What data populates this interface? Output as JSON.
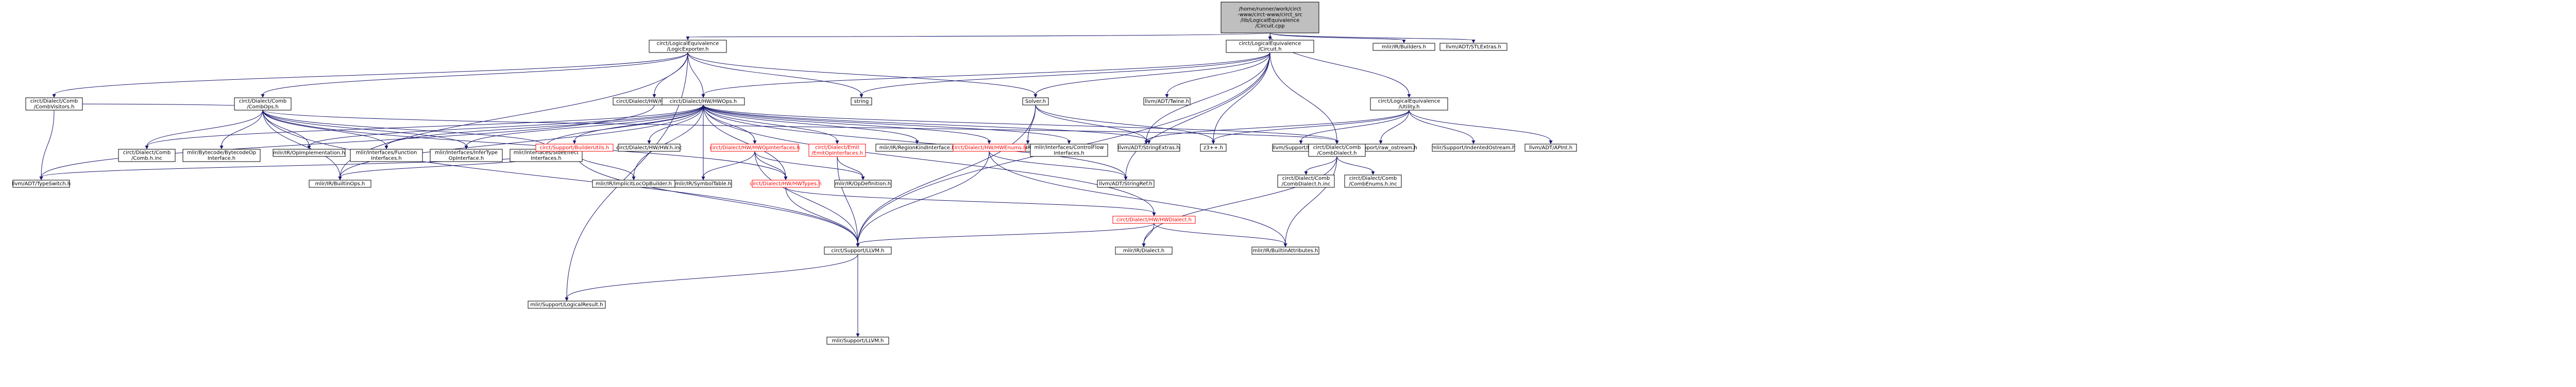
{
  "graph": {
    "colors": {
      "node_fill": "#ffffff",
      "node_border": "#000000",
      "root_fill": "#bfbfbf",
      "red_border": "#ff0000",
      "red_text": "#ff0000",
      "edge": "#191970"
    },
    "nodes": [
      {
        "id": "root",
        "lines": [
          "/home/runner/work/circt",
          "-www/circt-www/circt_src",
          "/lib/LogicalEquivalence",
          "/Circuit.cpp"
        ],
        "style": "root"
      },
      {
        "id": "logicexp",
        "lines": [
          "circt/LogicalEquivalence",
          "/LogicExporter.h"
        ]
      },
      {
        "id": "circuit",
        "lines": [
          "circt/LogicalEquivalence",
          "/Circuit.h"
        ]
      },
      {
        "id": "utility",
        "lines": [
          "circt/LogicalEquivalence",
          "/Utility.h"
        ]
      },
      {
        "id": "irbuilders",
        "lines": [
          "mlir/IR/Builders.h"
        ]
      },
      {
        "id": "stlextras",
        "lines": [
          "llvm/ADT/STLExtras.h"
        ]
      },
      {
        "id": "combvisitors",
        "lines": [
          "circt/Dialect/Comb",
          "/CombVisitors.h"
        ]
      },
      {
        "id": "hwvisitors",
        "lines": [
          "circt/Dialect/HW/HWVisitors.h"
        ]
      },
      {
        "id": "string",
        "lines": [
          "string"
        ]
      },
      {
        "id": "solver",
        "lines": [
          "Solver.h"
        ]
      },
      {
        "id": "twine",
        "lines": [
          "llvm/ADT/Twine.h"
        ]
      },
      {
        "id": "combops",
        "lines": [
          "circt/Dialect/Comb",
          "/CombOps.h"
        ]
      },
      {
        "id": "hwops",
        "lines": [
          "circt/Dialect/HW/HWOps.h"
        ]
      },
      {
        "id": "mlircontext",
        "lines": [
          "mlir/IR/MLIRContext.h"
        ]
      },
      {
        "id": "irvalue",
        "lines": [
          "mlir/IR/Value.h"
        ]
      },
      {
        "id": "z3",
        "lines": [
          "z3++.h"
        ]
      },
      {
        "id": "debug",
        "lines": [
          "llvm/Support/Debug.h"
        ]
      },
      {
        "id": "rawostream",
        "lines": [
          "llvm/Support/raw_ostream.h"
        ]
      },
      {
        "id": "indented",
        "lines": [
          "mlir/Support/IndentedOstream.h"
        ]
      },
      {
        "id": "apint",
        "lines": [
          "llvm/ADT/APInt.h"
        ]
      },
      {
        "id": "combinc",
        "lines": [
          "circt/Dialect/Comb",
          "/Comb.h.inc"
        ]
      },
      {
        "id": "bytecode",
        "lines": [
          "mlir/Bytecode/BytecodeOp",
          "Interface.h"
        ]
      },
      {
        "id": "opimpl",
        "lines": [
          "mlir/IR/OpImplementation.h"
        ]
      },
      {
        "id": "funcif",
        "lines": [
          "mlir/Interfaces/Function",
          "Interfaces.h"
        ]
      },
      {
        "id": "infertype",
        "lines": [
          "mlir/Interfaces/InferType",
          "OpInterface.h"
        ]
      },
      {
        "id": "sideeffect",
        "lines": [
          "mlir/Interfaces/SideEffect",
          "Interfaces.h"
        ]
      },
      {
        "id": "builderutils",
        "lines": [
          "circt/Support/BuilderUtils.h"
        ],
        "style": "red"
      },
      {
        "id": "hwinc",
        "lines": [
          "circt/Dialect/HW/HW.h.inc"
        ]
      },
      {
        "id": "hwopif",
        "lines": [
          "circt/Dialect/HW/HWOpInterfaces.h"
        ],
        "style": "red"
      },
      {
        "id": "emitopif",
        "lines": [
          "circt/Dialect/Emit",
          "/EmitOpInterfaces.h"
        ],
        "style": "red"
      },
      {
        "id": "regionkind",
        "lines": [
          "mlir/IR/RegionKindInterface.h"
        ]
      },
      {
        "id": "hwenums",
        "lines": [
          "circt/Dialect/HW/HWEnums.h"
        ],
        "style": "red"
      },
      {
        "id": "controlflow",
        "lines": [
          "mlir/Interfaces/ControlFlow",
          "Interfaces.h"
        ]
      },
      {
        "id": "stringext",
        "lines": [
          "llvm/ADT/StringExtras.h"
        ]
      },
      {
        "id": "combdialect",
        "lines": [
          "circt/Dialect/Comb",
          "/CombDialect.h"
        ]
      },
      {
        "id": "typeswitch",
        "lines": [
          "llvm/ADT/TypeSwitch.h"
        ]
      },
      {
        "id": "builtinops",
        "lines": [
          "mlir/IR/BuiltinOps.h"
        ]
      },
      {
        "id": "implicitlocop",
        "lines": [
          "mlir/IR/ImplicitLocOpBuilder.h"
        ]
      },
      {
        "id": "symboltable",
        "lines": [
          "mlir/IR/SymbolTable.h"
        ]
      },
      {
        "id": "hwtypes",
        "lines": [
          "circt/Dialect/HW/HWTypes.h"
        ],
        "style": "red"
      },
      {
        "id": "opdefinition",
        "lines": [
          "mlir/IR/OpDefinition.h"
        ]
      },
      {
        "id": "stringref",
        "lines": [
          "llvm/ADT/StringRef.h"
        ]
      },
      {
        "id": "combdialectinc",
        "lines": [
          "circt/Dialect/Comb",
          "/CombDialect.h.inc"
        ]
      },
      {
        "id": "combenumsinc",
        "lines": [
          "circt/Dialect/Comb",
          "/CombEnums.h.inc"
        ]
      },
      {
        "id": "hwdialect",
        "lines": [
          "circt/Dialect/HW/HWDialect.h"
        ],
        "style": "red"
      },
      {
        "id": "llvmh",
        "lines": [
          "circt/Support/LLVM.h"
        ]
      },
      {
        "id": "dialecth",
        "lines": [
          "mlir/IR/Dialect.h"
        ]
      },
      {
        "id": "builtinattr",
        "lines": [
          "mlir/IR/BuiltinAttributes.h"
        ]
      },
      {
        "id": "logicalresult",
        "lines": [
          "mlir/Support/LogicalResult.h"
        ]
      },
      {
        "id": "mlirllvm",
        "lines": [
          "mlir/Support/LLVM.h"
        ]
      }
    ],
    "edges": [
      [
        "root",
        "logicexp"
      ],
      [
        "root",
        "circuit"
      ],
      [
        "root",
        "utility"
      ],
      [
        "root",
        "irbuilders"
      ],
      [
        "root",
        "stlextras"
      ],
      [
        "logicexp",
        "combvisitors"
      ],
      [
        "logicexp",
        "hwvisitors"
      ],
      [
        "logicexp",
        "string"
      ],
      [
        "logicexp",
        "solver"
      ],
      [
        "logicexp",
        "combops"
      ],
      [
        "logicexp",
        "hwops"
      ],
      [
        "logicexp",
        "builtinops"
      ],
      [
        "logicexp",
        "logicalresult"
      ],
      [
        "circuit",
        "string"
      ],
      [
        "circuit",
        "solver"
      ],
      [
        "circuit",
        "twine"
      ],
      [
        "circuit",
        "hwops"
      ],
      [
        "circuit",
        "irvalue"
      ],
      [
        "circuit",
        "z3"
      ],
      [
        "circuit",
        "combdialect"
      ],
      [
        "circuit",
        "stringref"
      ],
      [
        "circuit",
        "llvmh"
      ],
      [
        "utility",
        "irvalue"
      ],
      [
        "utility",
        "z3"
      ],
      [
        "utility",
        "debug"
      ],
      [
        "utility",
        "rawostream"
      ],
      [
        "utility",
        "indented"
      ],
      [
        "utility",
        "apint"
      ],
      [
        "combvisitors",
        "combops"
      ],
      [
        "combvisitors",
        "typeswitch"
      ],
      [
        "hwvisitors",
        "hwops"
      ],
      [
        "hwvisitors",
        "typeswitch"
      ],
      [
        "solver",
        "mlircontext"
      ],
      [
        "solver",
        "irvalue"
      ],
      [
        "solver",
        "z3"
      ],
      [
        "solver",
        "llvmh"
      ],
      [
        "combops",
        "combinc"
      ],
      [
        "combops",
        "bytecode"
      ],
      [
        "combops",
        "opimpl"
      ],
      [
        "combops",
        "funcif"
      ],
      [
        "combops",
        "infertype"
      ],
      [
        "combops",
        "sideeffect"
      ],
      [
        "combops",
        "builtinops"
      ],
      [
        "combops",
        "hwtypes"
      ],
      [
        "combops",
        "combdialect"
      ],
      [
        "combops",
        "llvmh"
      ],
      [
        "hwops",
        "combinc"
      ],
      [
        "hwops",
        "opimpl"
      ],
      [
        "hwops",
        "funcif"
      ],
      [
        "hwops",
        "infertype"
      ],
      [
        "hwops",
        "sideeffect"
      ],
      [
        "hwops",
        "builderutils"
      ],
      [
        "hwops",
        "hwinc"
      ],
      [
        "hwops",
        "hwopif"
      ],
      [
        "hwops",
        "emitopif"
      ],
      [
        "hwops",
        "regionkind"
      ],
      [
        "hwops",
        "hwenums"
      ],
      [
        "hwops",
        "controlflow"
      ],
      [
        "hwops",
        "stringext"
      ],
      [
        "hwops",
        "combdialect"
      ],
      [
        "hwops",
        "builtinops"
      ],
      [
        "hwops",
        "implicitlocop"
      ],
      [
        "hwops",
        "symboltable"
      ],
      [
        "hwops",
        "hwtypes"
      ],
      [
        "hwops",
        "hwdialect"
      ],
      [
        "hwops",
        "stringref"
      ],
      [
        "builderutils",
        "builtinops"
      ],
      [
        "builderutils",
        "implicitlocop"
      ],
      [
        "builderutils",
        "typeswitch"
      ],
      [
        "builderutils",
        "llvmh"
      ],
      [
        "hwopif",
        "symboltable"
      ],
      [
        "hwopif",
        "hwtypes"
      ],
      [
        "hwopif",
        "opdefinition"
      ],
      [
        "hwopif",
        "llvmh"
      ],
      [
        "emitopif",
        "opdefinition"
      ],
      [
        "emitopif",
        "llvmh"
      ],
      [
        "hwenums",
        "stringref"
      ],
      [
        "hwenums",
        "llvmh"
      ],
      [
        "hwenums",
        "builtinattr"
      ],
      [
        "hwtypes",
        "hwdialect"
      ],
      [
        "hwtypes",
        "llvmh"
      ],
      [
        "combdialect",
        "combdialectinc"
      ],
      [
        "combdialect",
        "combenumsinc"
      ],
      [
        "combdialect",
        "dialecth"
      ],
      [
        "combdialect",
        "builtinattr"
      ],
      [
        "hwdialect",
        "llvmh"
      ],
      [
        "hwdialect",
        "dialecth"
      ],
      [
        "hwdialect",
        "builtinattr"
      ],
      [
        "llvmh",
        "mlirllvm"
      ],
      [
        "llvmh",
        "logicalresult"
      ]
    ]
  }
}
